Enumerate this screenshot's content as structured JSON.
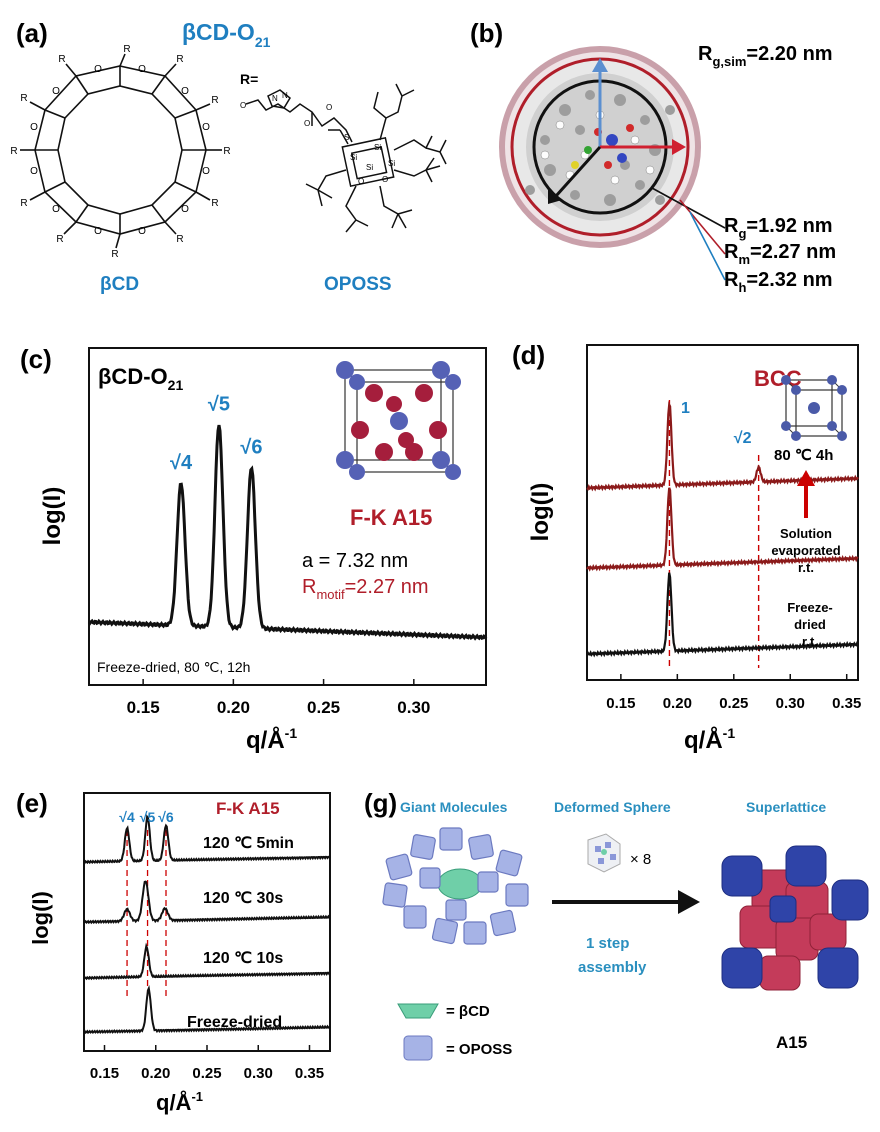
{
  "colors": {
    "blue": "#1f7fc0",
    "red": "#b01e2a",
    "dark_red": "#8b1a1a",
    "black": "#111111",
    "a15_red": "#c7385a",
    "a15_blue": "#2c3f9a",
    "cyan_label": "#2a8fbf"
  },
  "panel_a": {
    "label": "(a)",
    "title_main": "βCD-O",
    "title_sub": "21",
    "r_eq": "R=",
    "bcd_label": "βCD",
    "oposs_label": "OPOSS",
    "ring_atom": "O",
    "sub_atom": "R"
  },
  "panel_b": {
    "label": "(b)",
    "rg_sim_main": "R",
    "rg_sim_sub": "g,sim",
    "rg_sim_val": "=2.20 nm",
    "rg_main": "R",
    "rg_sub": "g",
    "rg_val": "=1.92 nm",
    "rm_main": "R",
    "rm_sub": "m",
    "rm_val": "=2.27 nm",
    "rh_main": "R",
    "rh_sub": "h",
    "rh_val": "=2.32 nm"
  },
  "panel_c": {
    "label": "(c)",
    "sample_main": "βCD-O",
    "sample_sub": "21",
    "ylabel": "log(I)",
    "xlabel_main": "q/Å",
    "xlabel_sup": "-1",
    "phase": "F-K A15",
    "lattice": "a = 7.32 nm",
    "rmotif_main": "R",
    "rmotif_sub": "motif",
    "rmotif_val": "=2.27 nm",
    "condition": "Freeze-dried, 80 ℃, 12h"
  },
  "panel_d": {
    "label": "(d)",
    "ylabel": "log(I)",
    "xlabel_main": "q/Å",
    "xlabel_sup": "-1",
    "phase": "BCC",
    "anneal": "80 ℃ 4h",
    "sol_line1": "Solution",
    "sol_line2": "evaporated",
    "sol_line3": "r.t.",
    "fd_line1": "Freeze-",
    "fd_line2": "dried",
    "fd_line3": "r.t."
  },
  "panel_e": {
    "label": "(e)",
    "ylabel": "log(I)",
    "xlabel_main": "q/Å",
    "xlabel_sup": "-1",
    "phase": "F-K A15",
    "curve_labels": [
      "120 ℃ 5min",
      "120 ℃ 30s",
      "120 ℃ 10s",
      "Freeze-dried"
    ]
  },
  "panel_g": {
    "label": "(g)",
    "giant": "Giant Molecules",
    "deformed": "Deformed Sphere",
    "superlattice": "Superlattice",
    "times": "× 8",
    "step1": "1 step",
    "step2": "assembly",
    "legend_bcd": "= βCD",
    "legend_oposs": "= OPOSS",
    "a15": "A15"
  },
  "chart_data": [
    {
      "id": "c",
      "type": "line",
      "title": "βCD-O21",
      "xlabel": "q/Å-1",
      "ylabel": "log(I)",
      "xlim": [
        0.12,
        0.34
      ],
      "xticks": [
        0.15,
        0.2,
        0.25,
        0.3
      ],
      "peaks": [
        {
          "q": 0.171,
          "label": "√4",
          "height": 0.62
        },
        {
          "q": 0.192,
          "label": "√5",
          "height": 0.88
        },
        {
          "q": 0.21,
          "label": "√6",
          "height": 0.7
        }
      ]
    },
    {
      "id": "d",
      "type": "line",
      "xlabel": "q/Å-1",
      "ylabel": "log(I)",
      "xlim": [
        0.12,
        0.36
      ],
      "xticks": [
        0.15,
        0.2,
        0.25,
        0.3,
        0.35
      ],
      "peak_labels": [
        {
          "q": 0.193,
          "label": "1"
        },
        {
          "q": 0.272,
          "label": "√2"
        }
      ],
      "series": [
        {
          "name": "80 ℃ 4h",
          "color": "#8b1a1a",
          "peaks": [
            {
              "q": 0.193,
              "height": 1.0
            },
            {
              "q": 0.272,
              "height": 0.18
            }
          ]
        },
        {
          "name": "Solution evaporated r.t.",
          "color": "#8b1a1a",
          "peaks": [
            {
              "q": 0.193,
              "height": 1.0
            }
          ]
        },
        {
          "name": "Freeze-dried r.t.",
          "color": "#111111",
          "peaks": [
            {
              "q": 0.193,
              "height": 1.0
            }
          ]
        }
      ]
    },
    {
      "id": "e",
      "type": "line",
      "xlabel": "q/Å-1",
      "ylabel": "log(I)",
      "xlim": [
        0.13,
        0.37
      ],
      "xticks": [
        0.15,
        0.2,
        0.25,
        0.3,
        0.35
      ],
      "peak_labels": [
        {
          "q": 0.172,
          "label": "√4"
        },
        {
          "q": 0.192,
          "label": "√5"
        },
        {
          "q": 0.21,
          "label": "√6"
        }
      ],
      "series": [
        {
          "name": "120 ℃ 5min",
          "peaks": [
            {
              "q": 0.172,
              "height": 0.75
            },
            {
              "q": 0.192,
              "height": 1.0
            },
            {
              "q": 0.21,
              "height": 0.8
            }
          ]
        },
        {
          "name": "120 ℃ 30s",
          "peaks": [
            {
              "q": 0.172,
              "height": 0.3
            },
            {
              "q": 0.19,
              "height": 1.0
            },
            {
              "q": 0.209,
              "height": 0.3
            }
          ]
        },
        {
          "name": "120 ℃ 10s",
          "peaks": [
            {
              "q": 0.191,
              "height": 1.0
            }
          ]
        },
        {
          "name": "Freeze-dried",
          "peaks": [
            {
              "q": 0.193,
              "height": 1.0
            }
          ]
        }
      ]
    }
  ]
}
